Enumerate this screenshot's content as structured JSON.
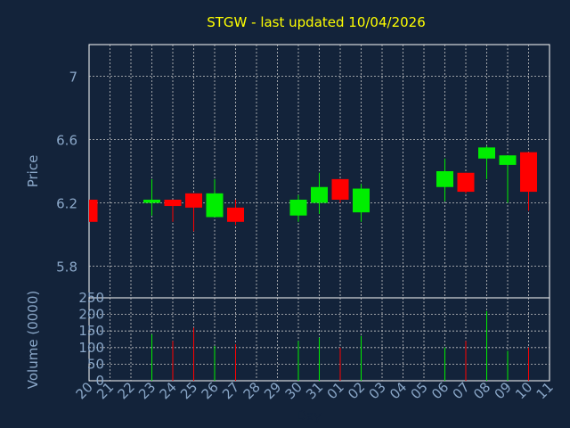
{
  "chart_data": {
    "type": "candlestick",
    "title": "STGW - last updated 10/04/2026",
    "xlabel": "Day",
    "ylabel": "Price",
    "volume_label": "Volume (0000)",
    "categories": [
      "20",
      "21",
      "22",
      "23",
      "24",
      "25",
      "26",
      "27",
      "28",
      "29",
      "30",
      "31",
      "01",
      "02",
      "03",
      "04",
      "05",
      "06",
      "07",
      "08",
      "09",
      "10",
      "11"
    ],
    "ylim": [
      5.6,
      7.2
    ],
    "y_ticks": [
      5.8,
      6.2,
      6.6,
      7
    ],
    "volume_ylim": [
      0,
      250
    ],
    "volume_ticks": [
      0,
      50,
      100,
      150,
      200,
      250
    ],
    "grid": true,
    "colors": {
      "background": "#13233a",
      "title": "#ffff00",
      "axis_text": "#8aa7c8",
      "up": "#00ee00",
      "down": "#ff0000",
      "grid": "#c8c8c8"
    },
    "candles": [
      {
        "x": "20",
        "open": 6.22,
        "high": 6.22,
        "low": 6.08,
        "close": 6.08
      },
      {
        "x": "23",
        "open": 6.2,
        "high": 6.35,
        "low": 6.12,
        "close": 6.22
      },
      {
        "x": "24",
        "open": 6.22,
        "high": 6.22,
        "low": 6.08,
        "close": 6.18
      },
      {
        "x": "25",
        "open": 6.26,
        "high": 6.26,
        "low": 6.02,
        "close": 6.17
      },
      {
        "x": "26",
        "open": 6.11,
        "high": 6.35,
        "low": 6.11,
        "close": 6.26
      },
      {
        "x": "27",
        "open": 6.17,
        "high": 6.22,
        "low": 6.06,
        "close": 6.08
      },
      {
        "x": "30",
        "open": 6.12,
        "high": 6.25,
        "low": 6.08,
        "close": 6.22
      },
      {
        "x": "31",
        "open": 6.2,
        "high": 6.39,
        "low": 6.13,
        "close": 6.3
      },
      {
        "x": "01",
        "open": 6.35,
        "high": 6.35,
        "low": 6.2,
        "close": 6.22
      },
      {
        "x": "02",
        "open": 6.14,
        "high": 6.32,
        "low": 6.08,
        "close": 6.29
      },
      {
        "x": "06",
        "open": 6.3,
        "high": 6.48,
        "low": 6.21,
        "close": 6.4
      },
      {
        "x": "07",
        "open": 6.39,
        "high": 6.39,
        "low": 6.26,
        "close": 6.27
      },
      {
        "x": "08",
        "open": 6.48,
        "high": 6.56,
        "low": 6.35,
        "close": 6.55
      },
      {
        "x": "09",
        "open": 6.44,
        "high": 6.5,
        "low": 6.2,
        "close": 6.5
      },
      {
        "x": "10",
        "open": 6.52,
        "high": 6.52,
        "low": 6.15,
        "close": 6.27
      }
    ],
    "volumes": [
      {
        "x": "23",
        "value": 140,
        "dir": "up"
      },
      {
        "x": "24",
        "value": 120,
        "dir": "down"
      },
      {
        "x": "25",
        "value": 160,
        "dir": "down"
      },
      {
        "x": "26",
        "value": 105,
        "dir": "up"
      },
      {
        "x": "27",
        "value": 110,
        "dir": "down"
      },
      {
        "x": "30",
        "value": 120,
        "dir": "up"
      },
      {
        "x": "31",
        "value": 130,
        "dir": "up"
      },
      {
        "x": "01",
        "value": 100,
        "dir": "down"
      },
      {
        "x": "02",
        "value": 135,
        "dir": "up"
      },
      {
        "x": "06",
        "value": 100,
        "dir": "up"
      },
      {
        "x": "07",
        "value": 120,
        "dir": "down"
      },
      {
        "x": "08",
        "value": 210,
        "dir": "up"
      },
      {
        "x": "09",
        "value": 90,
        "dir": "up"
      },
      {
        "x": "10",
        "value": 100,
        "dir": "down"
      }
    ]
  }
}
